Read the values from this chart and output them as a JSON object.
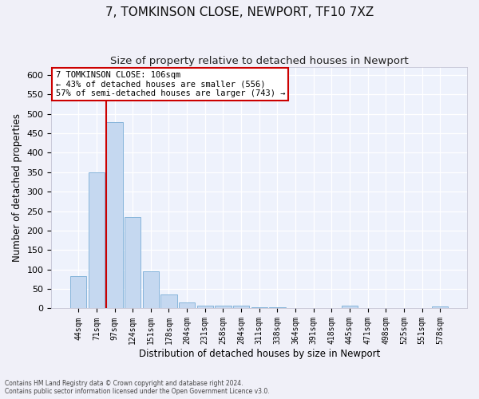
{
  "title1": "7, TOMKINSON CLOSE, NEWPORT, TF10 7XZ",
  "title2": "Size of property relative to detached houses in Newport",
  "xlabel": "Distribution of detached houses by size in Newport",
  "ylabel": "Number of detached properties",
  "categories": [
    "44sqm",
    "71sqm",
    "97sqm",
    "124sqm",
    "151sqm",
    "178sqm",
    "204sqm",
    "231sqm",
    "258sqm",
    "284sqm",
    "311sqm",
    "338sqm",
    "364sqm",
    "391sqm",
    "418sqm",
    "445sqm",
    "471sqm",
    "498sqm",
    "525sqm",
    "551sqm",
    "578sqm"
  ],
  "values": [
    82,
    350,
    478,
    235,
    95,
    35,
    15,
    8,
    8,
    8,
    4,
    4,
    0,
    0,
    0,
    7,
    0,
    0,
    0,
    0,
    5
  ],
  "bar_color": "#c5d8f0",
  "bar_edge_color": "#7aaed6",
  "vline_color": "#cc0000",
  "annotation_text": "7 TOMKINSON CLOSE: 106sqm\n← 43% of detached houses are smaller (556)\n57% of semi-detached houses are larger (743) →",
  "annotation_box_color": "#ffffff",
  "annotation_box_edge": "#cc0000",
  "ylim": [
    0,
    620
  ],
  "yticks": [
    0,
    50,
    100,
    150,
    200,
    250,
    300,
    350,
    400,
    450,
    500,
    550,
    600
  ],
  "footer1": "Contains HM Land Registry data © Crown copyright and database right 2024.",
  "footer2": "Contains public sector information licensed under the Open Government Licence v3.0.",
  "bg_color": "#eef2fc",
  "grid_color": "#ffffff",
  "title1_fontsize": 11,
  "title2_fontsize": 9.5,
  "xlabel_fontsize": 8.5,
  "ylabel_fontsize": 8.5
}
